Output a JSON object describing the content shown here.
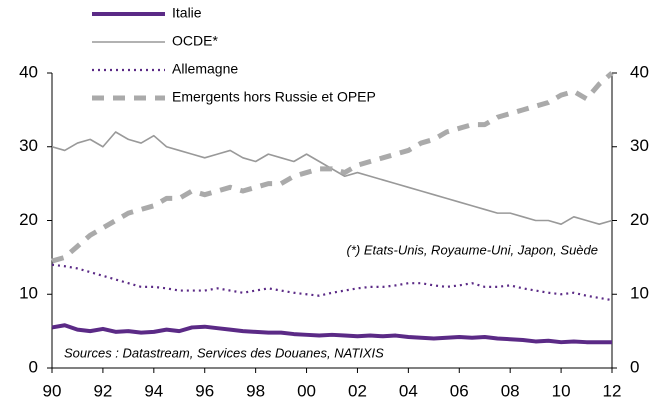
{
  "chart_data": {
    "type": "line",
    "x": [
      1990,
      1990.5,
      1991,
      1991.5,
      1992,
      1992.5,
      1993,
      1993.5,
      1994,
      1994.5,
      1995,
      1995.5,
      1996,
      1996.5,
      1997,
      1997.5,
      1998,
      1998.5,
      1999,
      1999.5,
      2000,
      2000.5,
      2001,
      2001.5,
      2002,
      2002.5,
      2003,
      2003.5,
      2004,
      2004.5,
      2005,
      2005.5,
      2006,
      2006.5,
      2007,
      2007.5,
      2008,
      2008.5,
      2009,
      2009.5,
      2010,
      2010.5,
      2011,
      2011.5,
      2012
    ],
    "series": [
      {
        "name": "Italie",
        "color": "#5b2a86",
        "values": [
          5.5,
          5.8,
          5.2,
          5.0,
          5.3,
          4.9,
          5.0,
          4.8,
          4.9,
          5.2,
          5.0,
          5.5,
          5.6,
          5.4,
          5.2,
          5.0,
          4.9,
          4.8,
          4.8,
          4.6,
          4.5,
          4.4,
          4.5,
          4.4,
          4.3,
          4.4,
          4.3,
          4.4,
          4.2,
          4.1,
          4.0,
          4.1,
          4.2,
          4.1,
          4.2,
          4.0,
          3.9,
          3.8,
          3.6,
          3.7,
          3.5,
          3.6,
          3.5,
          3.5,
          3.5
        ]
      },
      {
        "name": "OCDE*",
        "color": "#999999",
        "values": [
          30,
          29.5,
          30.5,
          31,
          30,
          32,
          31,
          30.5,
          31.5,
          30,
          29.5,
          29,
          28.5,
          29,
          29.5,
          28.5,
          28,
          29,
          28.5,
          28,
          29,
          28,
          27,
          26,
          26.5,
          26,
          25.5,
          25,
          24.5,
          24,
          23.5,
          23,
          22.5,
          22,
          21.5,
          21,
          21,
          20.5,
          20,
          20,
          19.5,
          20.5,
          20,
          19.5,
          20
        ]
      },
      {
        "name": "Allemagne",
        "color": "#5b2a86",
        "values": [
          14,
          13.8,
          13.5,
          13,
          12.5,
          12,
          11.5,
          11,
          11,
          10.8,
          10.5,
          10.5,
          10.5,
          10.8,
          10.5,
          10.2,
          10.5,
          10.8,
          10.5,
          10.2,
          10,
          9.8,
          10.2,
          10.5,
          10.8,
          11,
          11,
          11.2,
          11.5,
          11.5,
          11.2,
          11,
          11.2,
          11.5,
          11,
          11,
          11.2,
          10.8,
          10.5,
          10.2,
          10,
          10.2,
          9.8,
          9.5,
          9.2
        ]
      },
      {
        "name": "Emergents hors Russie et OPEP",
        "color": "#aaaaaa",
        "values": [
          14.5,
          15,
          16.5,
          18,
          19,
          20,
          21,
          21.5,
          22,
          23,
          23,
          24,
          23.5,
          24,
          24.5,
          24,
          24.5,
          25,
          25,
          26,
          26.5,
          27,
          27,
          26.5,
          27.5,
          28,
          28.5,
          29,
          29.5,
          30.5,
          31,
          32,
          32.5,
          33,
          33,
          34,
          34.5,
          35,
          35.5,
          36,
          37,
          37.5,
          36.5,
          38.5,
          40
        ]
      }
    ],
    "xlim": [
      1990,
      2012
    ],
    "xticks": [
      {
        "value": 1990,
        "label": "90"
      },
      {
        "value": 1992,
        "label": "92"
      },
      {
        "value": 1994,
        "label": "94"
      },
      {
        "value": 1996,
        "label": "96"
      },
      {
        "value": 1998,
        "label": "98"
      },
      {
        "value": 2000,
        "label": "00"
      },
      {
        "value": 2002,
        "label": "02"
      },
      {
        "value": 2004,
        "label": "04"
      },
      {
        "value": 2006,
        "label": "06"
      },
      {
        "value": 2008,
        "label": "08"
      },
      {
        "value": 2010,
        "label": "10"
      },
      {
        "value": 2012,
        "label": "12"
      }
    ],
    "ylim": [
      0,
      40
    ],
    "yticks": [
      0,
      10,
      20,
      30,
      40
    ],
    "y2lim": [
      0,
      40
    ],
    "y2ticks": [
      0,
      10,
      20,
      30,
      40
    ],
    "annotations": [
      "(*) Etats-Unis, Royaume-Uni, Japon, Suède",
      "Sources : Datastream, Services des  Douanes, NATIXIS"
    ],
    "grid": false
  }
}
